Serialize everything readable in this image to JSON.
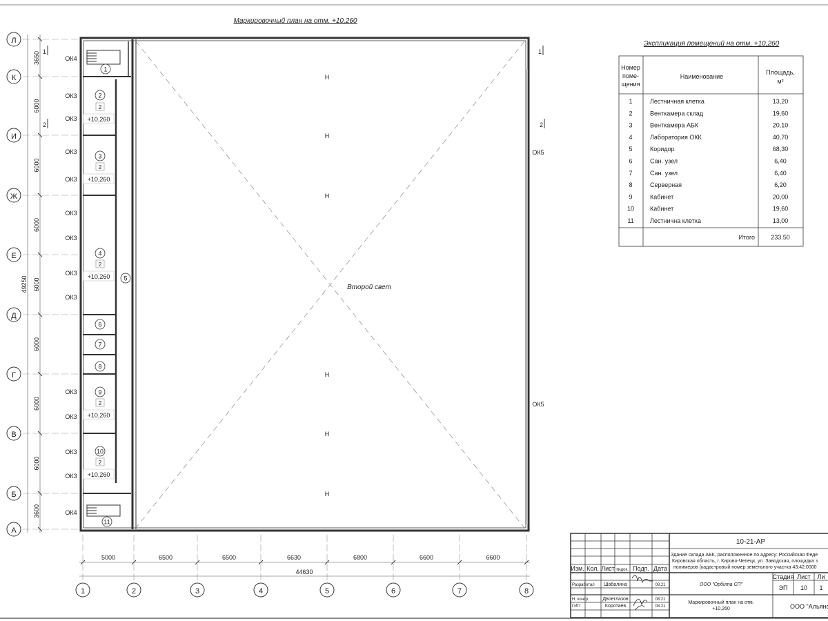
{
  "plan_title": "Маркировочный план на отм. +10,260",
  "center_label": "Второй свет",
  "row_axes": [
    "Л",
    "К",
    "И",
    "Ж",
    "Е",
    "Д",
    "Г",
    "В",
    "Б",
    "А"
  ],
  "row_dims": [
    "3650",
    "6000",
    "6000",
    "6000",
    "6000",
    "6000",
    "6000",
    "6000",
    "3600"
  ],
  "row_total": "49250",
  "col_axes": [
    "1",
    "2",
    "3",
    "4",
    "5",
    "6",
    "7",
    "8"
  ],
  "col_dims": [
    "5000",
    "6500",
    "6500",
    "6630",
    "6800",
    "6600",
    "6600"
  ],
  "col_total": "44630",
  "section_marks": {
    "s1": "1",
    "s2": "2"
  },
  "windows": {
    "ok3": "ОК3",
    "ok4": "ОК4",
    "ok5": "ОК5"
  },
  "rooms": [
    "1",
    "2",
    "3",
    "4",
    "5",
    "6",
    "7",
    "8",
    "9",
    "10",
    "11"
  ],
  "room_floor_tag": "2",
  "room_elevation": "+10,260",
  "explication": {
    "title": "Экспликация помещений на отм. +10,260",
    "headers": [
      "Номер поме-щения",
      "Наименование",
      "Площадь, м²"
    ],
    "rows": [
      [
        "1",
        "Лестничная клетка",
        "13,20"
      ],
      [
        "2",
        "Венткамера склад",
        "19,60"
      ],
      [
        "3",
        "Венткамера АБК",
        "20,10"
      ],
      [
        "4",
        "Лаборатория ОКК",
        "40,70"
      ],
      [
        "5",
        "Коридор",
        "68,30"
      ],
      [
        "6",
        "Сан. узел",
        "6,40"
      ],
      [
        "7",
        "Сан. узел",
        "6,40"
      ],
      [
        "8",
        "Серверная",
        "6,20"
      ],
      [
        "9",
        "Кабинет",
        "20,00"
      ],
      [
        "10",
        "Кабинет",
        "19,60"
      ],
      [
        "11",
        "Лестнична клетка",
        "13,00"
      ]
    ],
    "total_label": "Итого",
    "total_value": "233.50"
  },
  "title_block": {
    "code": "10-21-АР",
    "address": [
      "Здание склада АБК, расположенное по адресу: Российская Феде",
      "Кировская область, г. Кирово-Чепецк, ул. Заводская, площадка з",
      "полимеров (кадастровый номер земельного участка 43:42:0000"
    ],
    "headers": [
      "Изм.",
      "Кол.",
      "Лист",
      "№док.",
      "Подп.",
      "Дата"
    ],
    "people": [
      {
        "role": "Разработал",
        "name": "Шабалина",
        "date": "08.21"
      },
      {
        "role": "Н. контр.",
        "name": "Двоеглазов",
        "date": "08.21"
      },
      {
        "role": "ГИП",
        "name": "Коротаев",
        "date": "08.21"
      }
    ],
    "company": "ООО \"Орбита СП\"",
    "stage_label": "Стадия",
    "sheet_label": "Лист",
    "sheets_label": "Ли",
    "stage": "ЭП",
    "sheet": "10",
    "sheets": "1",
    "sheet_title": [
      "Маркировочный план на отм.",
      "+10,260"
    ],
    "org": "ООО \"Альянс"
  }
}
